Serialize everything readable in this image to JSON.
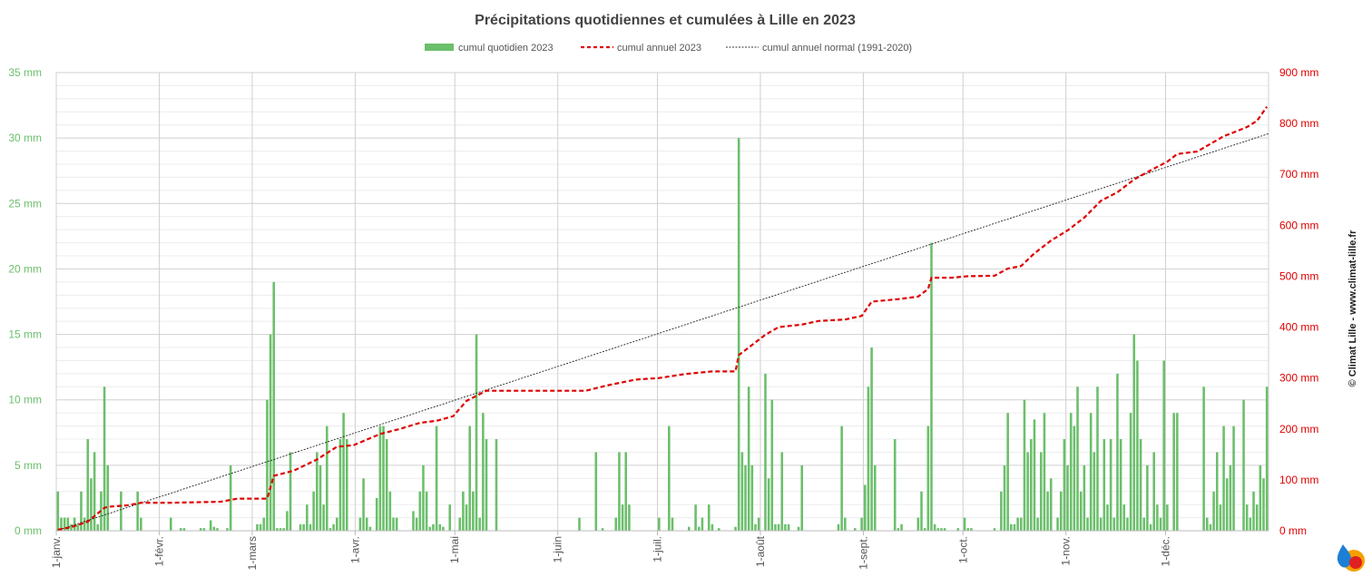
{
  "chart_data": {
    "type": "bar+line",
    "title": "Précipitations quotidiennes et cumulées à Lille en 2023",
    "legend": [
      "cumul quotidien 2023",
      "cumul annuel 2023",
      "cumul annuel normal (1991-2020)"
    ],
    "legend_position": "top-center",
    "grid": true,
    "y_left": {
      "ticks": [
        0,
        5,
        10,
        15,
        20,
        25,
        30,
        35
      ],
      "unit": "mm",
      "range": [
        0,
        35
      ],
      "color": "#6bbf6b"
    },
    "y_right": {
      "ticks": [
        0,
        100,
        200,
        300,
        400,
        500,
        600,
        700,
        800,
        900
      ],
      "unit": "mm",
      "range": [
        0,
        900
      ],
      "color": "#e00000"
    },
    "x_ticks": [
      {
        "label": "1-janv.",
        "day": 1
      },
      {
        "label": "1-févr.",
        "day": 32
      },
      {
        "label": "1-mars",
        "day": 60
      },
      {
        "label": "1-avr.",
        "day": 91
      },
      {
        "label": "1-mai",
        "day": 121
      },
      {
        "label": "1-juin",
        "day": 152
      },
      {
        "label": "1-juil.",
        "day": 182
      },
      {
        "label": "1-août",
        "day": 213
      },
      {
        "label": "1-sept.",
        "day": 244
      },
      {
        "label": "1-oct.",
        "day": 274
      },
      {
        "label": "1-nov.",
        "day": 305
      },
      {
        "label": "1-déc.",
        "day": 335
      }
    ],
    "days_in_year": 365,
    "daily_precip_mm": [
      [
        1,
        3
      ],
      [
        2,
        1
      ],
      [
        3,
        1
      ],
      [
        4,
        1
      ],
      [
        5,
        0.5
      ],
      [
        6,
        1
      ],
      [
        7,
        0.5
      ],
      [
        8,
        3
      ],
      [
        9,
        1
      ],
      [
        10,
        7
      ],
      [
        11,
        4
      ],
      [
        12,
        6
      ],
      [
        13,
        0.5
      ],
      [
        14,
        3
      ],
      [
        15,
        11
      ],
      [
        16,
        5
      ],
      [
        20,
        3
      ],
      [
        25,
        3
      ],
      [
        26,
        1
      ],
      [
        35,
        1
      ],
      [
        38,
        0.2
      ],
      [
        39,
        0.2
      ],
      [
        44,
        0.2
      ],
      [
        45,
        0.2
      ],
      [
        47,
        0.8
      ],
      [
        48,
        0.3
      ],
      [
        49,
        0.2
      ],
      [
        52,
        0.2
      ],
      [
        53,
        5
      ],
      [
        61,
        0.5
      ],
      [
        62,
        0.5
      ],
      [
        63,
        1
      ],
      [
        64,
        10
      ],
      [
        65,
        15
      ],
      [
        66,
        19
      ],
      [
        67,
        0.2
      ],
      [
        68,
        0.2
      ],
      [
        69,
        0.2
      ],
      [
        70,
        1.5
      ],
      [
        71,
        6
      ],
      [
        74,
        0.5
      ],
      [
        75,
        0.5
      ],
      [
        76,
        2
      ],
      [
        77,
        0.5
      ],
      [
        78,
        3
      ],
      [
        79,
        6
      ],
      [
        80,
        5
      ],
      [
        81,
        2
      ],
      [
        82,
        8
      ],
      [
        83,
        0.2
      ],
      [
        84,
        0.5
      ],
      [
        85,
        1
      ],
      [
        86,
        7
      ],
      [
        87,
        9
      ],
      [
        88,
        7
      ],
      [
        92,
        1
      ],
      [
        93,
        4
      ],
      [
        94,
        1
      ],
      [
        95,
        0.3
      ],
      [
        97,
        2.5
      ],
      [
        98,
        8
      ],
      [
        99,
        8
      ],
      [
        100,
        7
      ],
      [
        101,
        3
      ],
      [
        102,
        1
      ],
      [
        103,
        1
      ],
      [
        108,
        1.5
      ],
      [
        109,
        1
      ],
      [
        110,
        3
      ],
      [
        111,
        5
      ],
      [
        112,
        3
      ],
      [
        113,
        0.3
      ],
      [
        114,
        0.5
      ],
      [
        115,
        8
      ],
      [
        116,
        0.5
      ],
      [
        117,
        0.3
      ],
      [
        119,
        2
      ],
      [
        122,
        1
      ],
      [
        123,
        3
      ],
      [
        124,
        2
      ],
      [
        125,
        8
      ],
      [
        126,
        3
      ],
      [
        127,
        15
      ],
      [
        128,
        1
      ],
      [
        129,
        9
      ],
      [
        130,
        7
      ],
      [
        133,
        7
      ],
      [
        158,
        1
      ],
      [
        163,
        6
      ],
      [
        165,
        0.2
      ],
      [
        169,
        1
      ],
      [
        170,
        6
      ],
      [
        171,
        2
      ],
      [
        172,
        6
      ],
      [
        173,
        2
      ],
      [
        182,
        1
      ],
      [
        185,
        8
      ],
      [
        186,
        1
      ],
      [
        191,
        0.3
      ],
      [
        193,
        2
      ],
      [
        194,
        0.3
      ],
      [
        195,
        1
      ],
      [
        197,
        2
      ],
      [
        198,
        0.5
      ],
      [
        200,
        0.2
      ],
      [
        205,
        0.3
      ],
      [
        206,
        30
      ],
      [
        207,
        6
      ],
      [
        208,
        5
      ],
      [
        209,
        11
      ],
      [
        210,
        5
      ],
      [
        211,
        0.5
      ],
      [
        212,
        1
      ],
      [
        214,
        12
      ],
      [
        215,
        4
      ],
      [
        216,
        10
      ],
      [
        217,
        0.5
      ],
      [
        218,
        0.5
      ],
      [
        219,
        6
      ],
      [
        220,
        0.5
      ],
      [
        221,
        0.5
      ],
      [
        224,
        0.3
      ],
      [
        225,
        5
      ],
      [
        236,
        0.5
      ],
      [
        237,
        8
      ],
      [
        238,
        1
      ],
      [
        241,
        0.2
      ],
      [
        243,
        1
      ],
      [
        244,
        3.5
      ],
      [
        245,
        11
      ],
      [
        246,
        14
      ],
      [
        247,
        5
      ],
      [
        253,
        7
      ],
      [
        254,
        0.2
      ],
      [
        255,
        0.5
      ],
      [
        260,
        1
      ],
      [
        261,
        3
      ],
      [
        262,
        0.2
      ],
      [
        263,
        8
      ],
      [
        264,
        22
      ],
      [
        265,
        0.5
      ],
      [
        266,
        0.2
      ],
      [
        267,
        0.2
      ],
      [
        268,
        0.2
      ],
      [
        272,
        0.2
      ],
      [
        274,
        1
      ],
      [
        275,
        0.2
      ],
      [
        276,
        0.2
      ],
      [
        283,
        0.2
      ],
      [
        285,
        3
      ],
      [
        286,
        5
      ],
      [
        287,
        9
      ],
      [
        288,
        0.5
      ],
      [
        289,
        0.5
      ],
      [
        290,
        1
      ],
      [
        291,
        1
      ],
      [
        292,
        10
      ],
      [
        293,
        6
      ],
      [
        294,
        7
      ],
      [
        295,
        8.5
      ],
      [
        296,
        1
      ],
      [
        297,
        6
      ],
      [
        298,
        9
      ],
      [
        299,
        3
      ],
      [
        300,
        4
      ],
      [
        302,
        1
      ],
      [
        303,
        3
      ],
      [
        304,
        7
      ],
      [
        305,
        5
      ],
      [
        306,
        9
      ],
      [
        307,
        8
      ],
      [
        308,
        11
      ],
      [
        309,
        3
      ],
      [
        310,
        5
      ],
      [
        311,
        1
      ],
      [
        312,
        9
      ],
      [
        313,
        6
      ],
      [
        314,
        11
      ],
      [
        315,
        1
      ],
      [
        316,
        7
      ],
      [
        317,
        2
      ],
      [
        318,
        7
      ],
      [
        319,
        1
      ],
      [
        320,
        12
      ],
      [
        321,
        7
      ],
      [
        322,
        2
      ],
      [
        323,
        1
      ],
      [
        324,
        9
      ],
      [
        325,
        15
      ],
      [
        326,
        13
      ],
      [
        327,
        7
      ],
      [
        328,
        1
      ],
      [
        329,
        5
      ],
      [
        330,
        0.5
      ],
      [
        331,
        6
      ],
      [
        332,
        2
      ],
      [
        333,
        1
      ],
      [
        334,
        13
      ],
      [
        335,
        2
      ],
      [
        337,
        9
      ],
      [
        338,
        9
      ],
      [
        346,
        11
      ],
      [
        347,
        1
      ],
      [
        348,
        0.5
      ],
      [
        349,
        3
      ],
      [
        350,
        6
      ],
      [
        351,
        2
      ],
      [
        352,
        8
      ],
      [
        353,
        4
      ],
      [
        354,
        5
      ],
      [
        355,
        8
      ],
      [
        358,
        10
      ],
      [
        359,
        2
      ],
      [
        360,
        1
      ],
      [
        361,
        3
      ],
      [
        362,
        2
      ],
      [
        363,
        5
      ],
      [
        364,
        4
      ],
      [
        365,
        11
      ]
    ],
    "cumulative_2023_mm": [
      [
        1,
        2
      ],
      [
        5,
        7
      ],
      [
        10,
        18
      ],
      [
        15,
        45
      ],
      [
        16,
        47
      ],
      [
        22,
        50
      ],
      [
        26,
        55
      ],
      [
        35,
        55
      ],
      [
        50,
        57
      ],
      [
        55,
        63
      ],
      [
        64,
        63
      ],
      [
        66,
        108
      ],
      [
        72,
        118
      ],
      [
        79,
        140
      ],
      [
        85,
        165
      ],
      [
        90,
        168
      ],
      [
        98,
        190
      ],
      [
        104,
        200
      ],
      [
        110,
        212
      ],
      [
        115,
        216
      ],
      [
        120,
        225
      ],
      [
        124,
        255
      ],
      [
        130,
        275
      ],
      [
        150,
        275
      ],
      [
        160,
        275
      ],
      [
        166,
        285
      ],
      [
        175,
        297
      ],
      [
        182,
        300
      ],
      [
        190,
        308
      ],
      [
        198,
        313
      ],
      [
        205,
        313
      ],
      [
        206,
        345
      ],
      [
        210,
        365
      ],
      [
        214,
        385
      ],
      [
        218,
        400
      ],
      [
        225,
        405
      ],
      [
        230,
        412
      ],
      [
        238,
        415
      ],
      [
        243,
        422
      ],
      [
        246,
        450
      ],
      [
        254,
        455
      ],
      [
        260,
        460
      ],
      [
        263,
        475
      ],
      [
        264,
        497
      ],
      [
        270,
        497
      ],
      [
        275,
        500
      ],
      [
        283,
        501
      ],
      [
        287,
        515
      ],
      [
        291,
        520
      ],
      [
        295,
        545
      ],
      [
        300,
        570
      ],
      [
        305,
        590
      ],
      [
        310,
        615
      ],
      [
        315,
        648
      ],
      [
        320,
        665
      ],
      [
        325,
        690
      ],
      [
        330,
        708
      ],
      [
        335,
        725
      ],
      [
        338,
        740
      ],
      [
        344,
        745
      ],
      [
        348,
        760
      ],
      [
        352,
        775
      ],
      [
        356,
        785
      ],
      [
        359,
        793
      ],
      [
        362,
        805
      ],
      [
        365,
        833
      ]
    ],
    "normal_annual_mm": [
      [
        0,
        0
      ],
      [
        365,
        780
      ]
    ]
  },
  "credit_text": "© Climat Lille - www.climat-lille.fr"
}
